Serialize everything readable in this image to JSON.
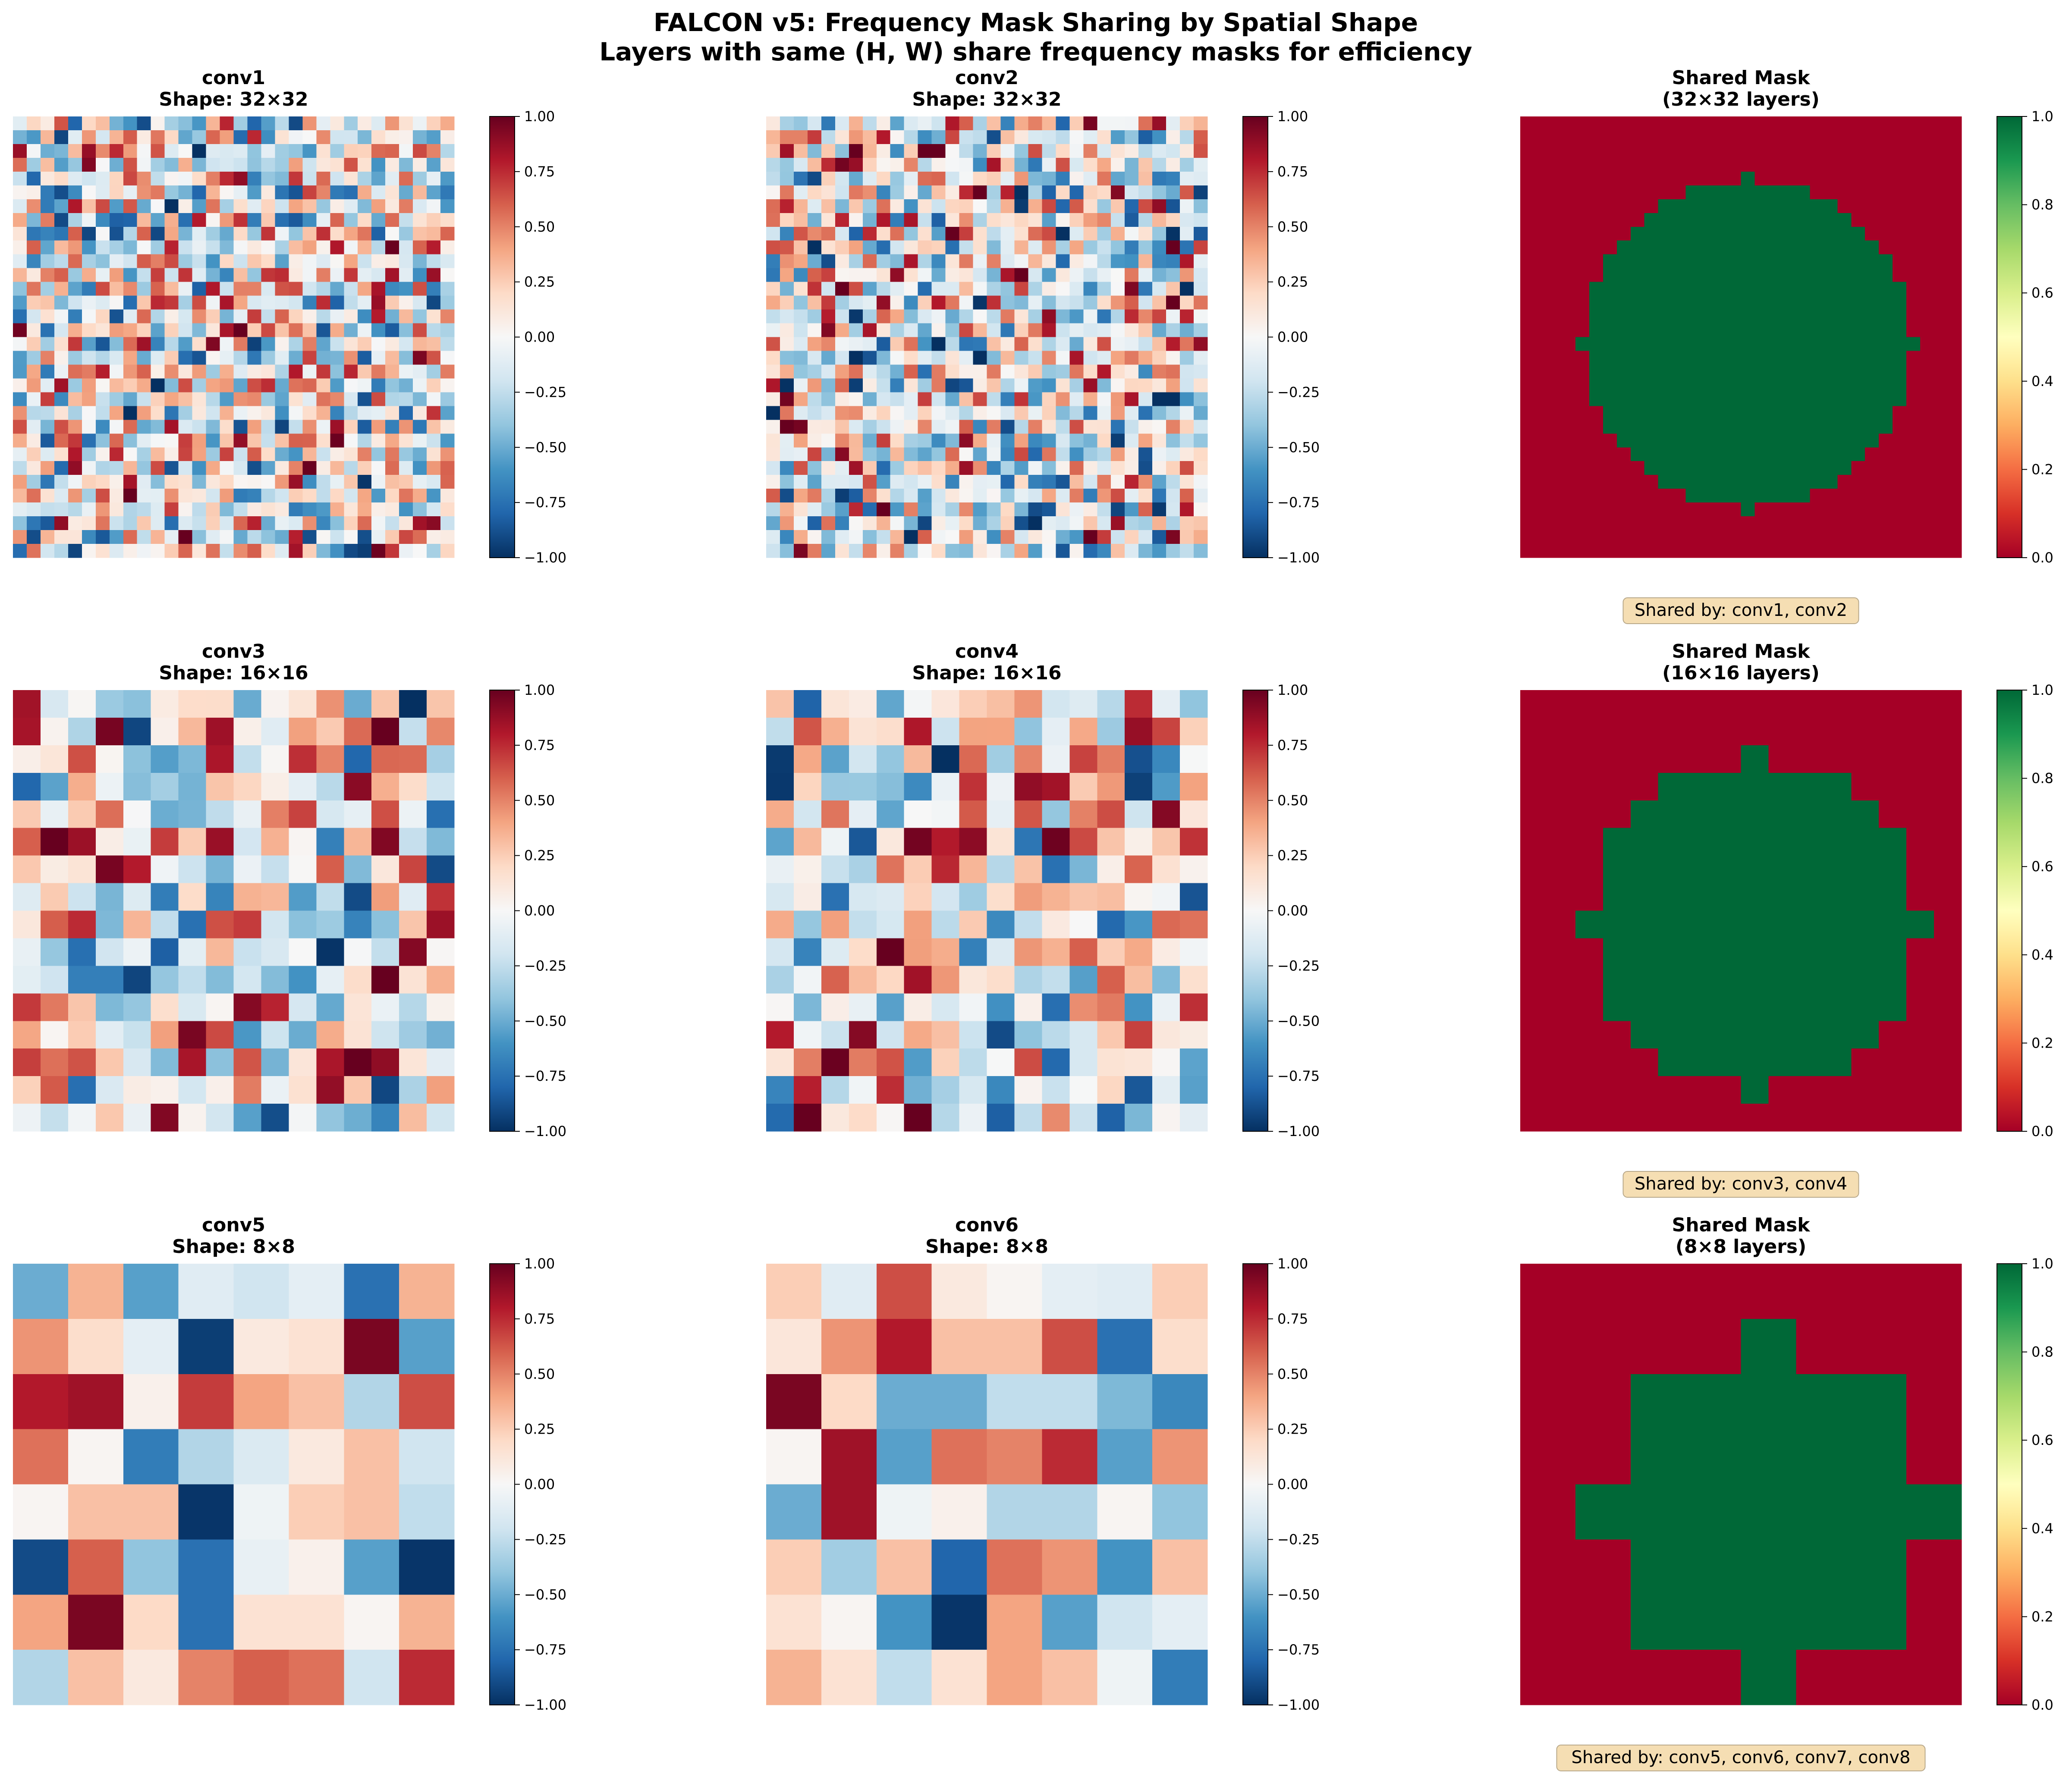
{
  "title_line1": "FALCON v5: Frequency Mask Sharing by Spatial Shape",
  "title_line2": "Layers with same (H, W) share frequency masks for efficiency",
  "chart_data": [
    {
      "type": "heatmap",
      "name": "conv1",
      "title_line1": "conv1",
      "title_line2": "Shape: 32×32",
      "rows": 32,
      "cols": 32,
      "cmap": "RdBu_r",
      "vmin": -1.0,
      "vmax": 1.0,
      "seed": 101,
      "colorbar_ticks": [
        "1.00",
        "0.75",
        "0.50",
        "0.25",
        "0.00",
        "−0.25",
        "−0.50",
        "−0.75",
        "−1.00"
      ]
    },
    {
      "type": "heatmap",
      "name": "conv2",
      "title_line1": "conv2",
      "title_line2": "Shape: 32×32",
      "rows": 32,
      "cols": 32,
      "cmap": "RdBu_r",
      "vmin": -1.0,
      "vmax": 1.0,
      "seed": 202,
      "colorbar_ticks": [
        "1.00",
        "0.75",
        "0.50",
        "0.25",
        "0.00",
        "−0.25",
        "−0.50",
        "−0.75",
        "−1.00"
      ]
    },
    {
      "type": "heatmap",
      "name": "mask32",
      "title_line1": "Shared Mask",
      "title_line2": "(32×32 layers)",
      "rows": 32,
      "cols": 32,
      "cmap": "RdYlGn",
      "vmin": 0.0,
      "vmax": 1.0,
      "mask_radius": 12.0,
      "mask_value_inside": 1,
      "mask_value_outside": 0,
      "colorbar_ticks": [
        "1.0",
        "0.8",
        "0.6",
        "0.4",
        "0.2",
        "0.0"
      ],
      "shared_by": "Shared by: conv1, conv2"
    },
    {
      "type": "heatmap",
      "name": "conv3",
      "title_line1": "conv3",
      "title_line2": "Shape: 16×16",
      "rows": 16,
      "cols": 16,
      "cmap": "RdBu_r",
      "vmin": -1.0,
      "vmax": 1.0,
      "seed": 303,
      "colorbar_ticks": [
        "1.00",
        "0.75",
        "0.50",
        "0.25",
        "0.00",
        "−0.25",
        "−0.50",
        "−0.75",
        "−1.00"
      ]
    },
    {
      "type": "heatmap",
      "name": "conv4",
      "title_line1": "conv4",
      "title_line2": "Shape: 16×16",
      "rows": 16,
      "cols": 16,
      "cmap": "RdBu_r",
      "vmin": -1.0,
      "vmax": 1.0,
      "seed": 404,
      "colorbar_ticks": [
        "1.00",
        "0.75",
        "0.50",
        "0.25",
        "0.00",
        "−0.25",
        "−0.50",
        "−0.75",
        "−1.00"
      ]
    },
    {
      "type": "heatmap",
      "name": "mask16",
      "title_line1": "Shared Mask",
      "title_line2": "(16×16 layers)",
      "rows": 16,
      "cols": 16,
      "cmap": "RdYlGn",
      "vmin": 0.0,
      "vmax": 1.0,
      "mask_radius": 6.0,
      "mask_value_inside": 1,
      "mask_value_outside": 0,
      "colorbar_ticks": [
        "1.0",
        "0.8",
        "0.6",
        "0.4",
        "0.2",
        "0.0"
      ],
      "shared_by": "Shared by: conv3, conv4"
    },
    {
      "type": "heatmap",
      "name": "conv5",
      "title_line1": "conv5",
      "title_line2": "Shape: 8×8",
      "rows": 8,
      "cols": 8,
      "cmap": "RdBu_r",
      "vmin": -1.0,
      "vmax": 1.0,
      "values": [
        [
          -0.5,
          0.35,
          -0.55,
          -0.12,
          -0.2,
          -0.1,
          -0.75,
          0.35
        ],
        [
          0.45,
          0.18,
          -0.1,
          -0.95,
          0.1,
          0.15,
          0.95,
          -0.55
        ],
        [
          0.8,
          0.85,
          0.05,
          0.7,
          0.4,
          0.3,
          -0.3,
          0.65
        ],
        [
          0.55,
          0.02,
          -0.7,
          -0.3,
          -0.15,
          0.1,
          0.3,
          -0.2
        ],
        [
          0.02,
          0.3,
          0.3,
          -0.98,
          -0.05,
          0.25,
          0.3,
          -0.25
        ],
        [
          -0.9,
          0.6,
          -0.4,
          -0.75,
          -0.08,
          0.05,
          -0.55,
          -0.98
        ],
        [
          0.4,
          0.95,
          0.2,
          -0.75,
          0.15,
          0.15,
          0.02,
          0.35
        ],
        [
          -0.3,
          0.3,
          0.1,
          0.5,
          0.6,
          0.55,
          -0.2,
          0.75
        ]
      ],
      "colorbar_ticks": [
        "1.00",
        "0.75",
        "0.50",
        "0.25",
        "0.00",
        "−0.25",
        "−0.50",
        "−0.75",
        "−1.00"
      ]
    },
    {
      "type": "heatmap",
      "name": "conv6",
      "title_line1": "conv6",
      "title_line2": "Shape: 8×8",
      "rows": 8,
      "cols": 8,
      "cmap": "RdBu_r",
      "vmin": -1.0,
      "vmax": 1.0,
      "values": [
        [
          0.25,
          -0.12,
          0.65,
          0.1,
          0.02,
          -0.1,
          -0.12,
          0.25
        ],
        [
          0.12,
          0.45,
          0.8,
          0.3,
          0.3,
          0.65,
          -0.75,
          0.18
        ],
        [
          0.95,
          0.2,
          -0.5,
          -0.5,
          -0.25,
          -0.25,
          -0.45,
          -0.65
        ],
        [
          0.02,
          0.85,
          -0.55,
          0.55,
          0.5,
          0.75,
          -0.55,
          0.45
        ],
        [
          -0.5,
          0.85,
          -0.05,
          0.05,
          -0.3,
          -0.3,
          0.02,
          -0.4
        ],
        [
          0.25,
          -0.35,
          0.3,
          -0.8,
          0.55,
          0.45,
          -0.6,
          0.3
        ],
        [
          0.15,
          0.02,
          -0.6,
          -0.98,
          0.4,
          -0.55,
          -0.2,
          -0.1
        ],
        [
          0.35,
          0.15,
          -0.25,
          0.15,
          0.4,
          0.3,
          -0.05,
          -0.7
        ]
      ],
      "colorbar_ticks": [
        "1.00",
        "0.75",
        "0.50",
        "0.25",
        "0.00",
        "−0.25",
        "−0.50",
        "−0.75",
        "−1.00"
      ]
    },
    {
      "type": "heatmap",
      "name": "mask8",
      "title_line1": "Shared Mask",
      "title_line2": "(8×8 layers)",
      "rows": 8,
      "cols": 8,
      "cmap": "RdYlGn",
      "vmin": 0.0,
      "vmax": 1.0,
      "values": [
        [
          0,
          0,
          0,
          0,
          0,
          0,
          0,
          0
        ],
        [
          0,
          0,
          0,
          0,
          1,
          0,
          0,
          0
        ],
        [
          0,
          0,
          1,
          1,
          1,
          1,
          1,
          0
        ],
        [
          0,
          0,
          1,
          1,
          1,
          1,
          1,
          0
        ],
        [
          0,
          1,
          1,
          1,
          1,
          1,
          1,
          1
        ],
        [
          0,
          0,
          1,
          1,
          1,
          1,
          1,
          0
        ],
        [
          0,
          0,
          1,
          1,
          1,
          1,
          1,
          0
        ],
        [
          0,
          0,
          0,
          0,
          1,
          0,
          0,
          0
        ]
      ],
      "colorbar_ticks": [
        "1.0",
        "0.8",
        "0.6",
        "0.4",
        "0.2",
        "0.0"
      ],
      "shared_by": "Shared by: conv5, conv6, conv7, conv8"
    }
  ]
}
